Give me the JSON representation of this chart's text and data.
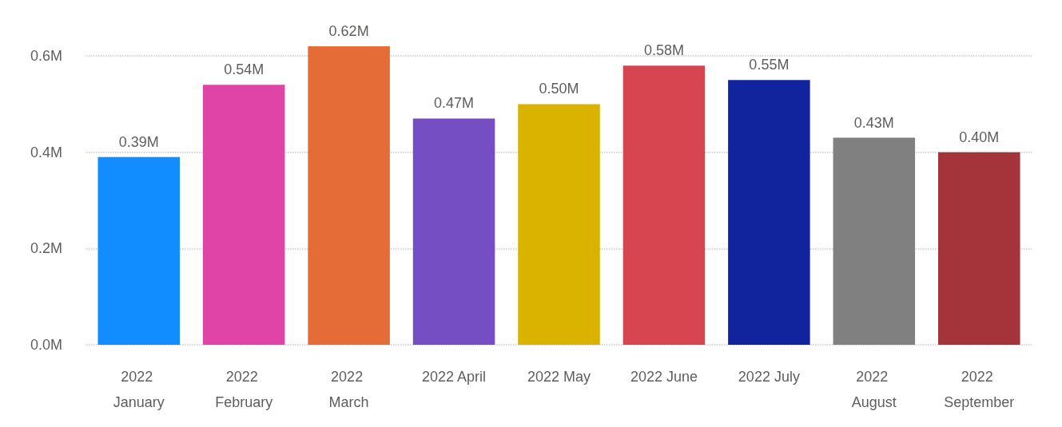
{
  "chart_data": {
    "type": "bar",
    "categories": [
      "2022 January",
      "2022 February",
      "2022 March",
      "2022 April",
      "2022 May",
      "2022 June",
      "2022 July",
      "2022 August",
      "2022 September"
    ],
    "values": [
      0.39,
      0.54,
      0.62,
      0.47,
      0.5,
      0.58,
      0.55,
      0.43,
      0.4
    ],
    "value_labels": [
      "0.39M",
      "0.54M",
      "0.62M",
      "0.47M",
      "0.50M",
      "0.58M",
      "0.55M",
      "0.43M",
      "0.40M"
    ],
    "colors": [
      "#118dff",
      "#e044a7",
      "#e66c37",
      "#744ec2",
      "#d9b300",
      "#d64550",
      "#12239e",
      "#808080",
      "#a4343a"
    ],
    "yticks": [
      {
        "value": 0,
        "label": "0.0M"
      },
      {
        "value": 0.2,
        "label": "0.2M"
      },
      {
        "value": 0.4,
        "label": "0.4M"
      },
      {
        "value": 0.6,
        "label": "0.6M"
      }
    ],
    "ylim": [
      0,
      0.62
    ],
    "grid": "y"
  }
}
